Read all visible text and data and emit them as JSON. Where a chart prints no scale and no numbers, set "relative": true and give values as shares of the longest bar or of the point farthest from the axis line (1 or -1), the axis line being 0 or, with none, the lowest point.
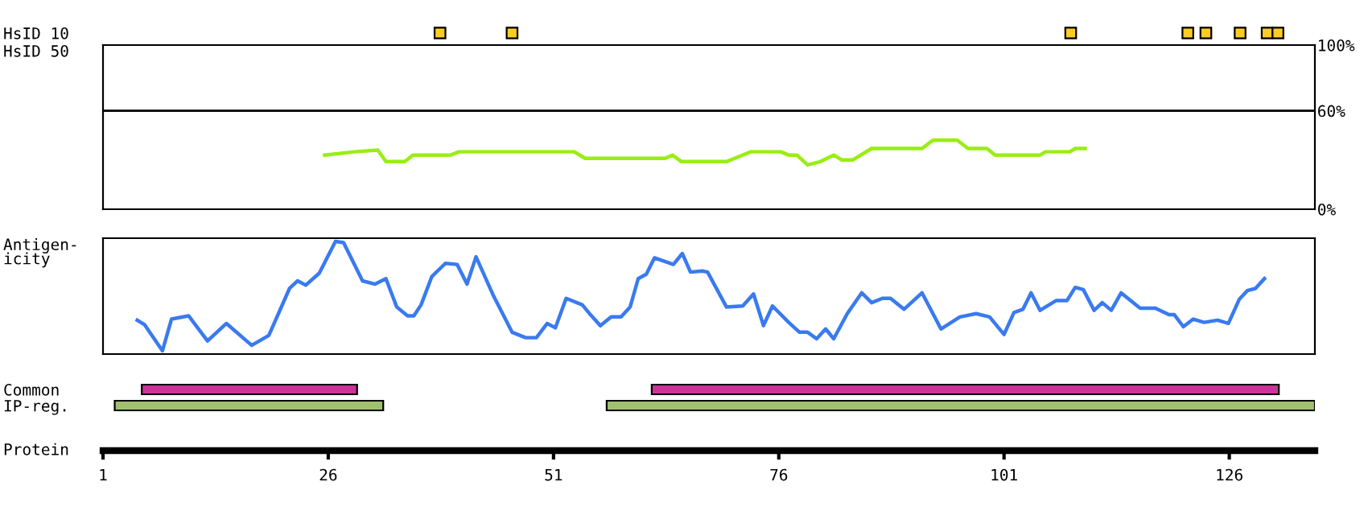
{
  "chart_data": [
    {
      "type": "bar",
      "orientation": "horizontal",
      "categories": [
        "HsID 10",
        "HsID 50"
      ],
      "xlim": [
        1,
        135.5
      ],
      "tick_labels": "y",
      "grid": false,
      "legend": false,
      "series": [
        {
          "color": "#ffcc22",
          "values": [
            1.2,
            null
          ],
          "base": [
            37.8,
            null
          ]
        },
        {
          "color": "#ffcc22",
          "values": [
            1.2,
            null
          ],
          "base": [
            45.8,
            null
          ]
        },
        {
          "color": "#ffcc22",
          "values": [
            1.2,
            null
          ],
          "base": [
            107.8,
            null
          ]
        },
        {
          "color": "#ffcc22",
          "values": [
            1.2,
            null
          ],
          "base": [
            120.8,
            null
          ]
        },
        {
          "color": "#ffcc22",
          "values": [
            1.2,
            null
          ],
          "base": [
            122.8,
            null
          ]
        },
        {
          "color": "#ffcc22",
          "values": [
            1.2,
            null
          ],
          "base": [
            126.6,
            null
          ]
        },
        {
          "color": "#ffcc22",
          "values": [
            1.2,
            null
          ],
          "base": [
            129.6,
            null
          ]
        },
        {
          "color": "#ffcc22",
          "values": [
            1.2,
            null
          ],
          "base": [
            130.8,
            null
          ]
        }
      ]
    },
    {
      "type": "line",
      "xlim": [
        1,
        135.5
      ],
      "ylim": [
        0,
        100
      ],
      "yticks": [
        {
          "value": 0,
          "label": "0%"
        },
        {
          "value": 60,
          "label": "60%"
        },
        {
          "value": 100,
          "label": "100%"
        }
      ],
      "tick_labels": "y",
      "grid": false,
      "legend": false,
      "ref_lines": [
        {
          "axis": "y",
          "value": 60,
          "color": "#000000",
          "line_style": "solid"
        }
      ],
      "series": [
        {
          "color": "#99ee11",
          "x": [
            25.6,
            28.9,
            31.5,
            32.4,
            34.5,
            35.4,
            39.6,
            40.5,
            53.3,
            54.5,
            63.4,
            64.2,
            65.2,
            70.2,
            71.1,
            72.9,
            76.2,
            77.1,
            78.0,
            79.2,
            80.6,
            82.1,
            83.0,
            84.2,
            86.3,
            91.9,
            93.1,
            95.8,
            97.0,
            99.1,
            100.0,
            105.0,
            105.6,
            108.3,
            108.9,
            110.0
          ],
          "values": [
            33,
            35,
            36,
            29,
            29,
            33,
            33,
            35,
            35,
            31,
            31,
            33,
            29,
            29,
            31,
            35,
            35,
            33,
            33,
            27,
            29,
            33,
            30,
            30,
            37,
            37,
            42,
            42,
            37,
            37,
            33,
            33,
            35,
            35,
            37,
            37
          ]
        }
      ]
    },
    {
      "type": "line",
      "relative": true,
      "xlim": [
        1,
        135.5
      ],
      "ylabel": "Antigen-\nicity",
      "tick_labels": false,
      "grid": false,
      "legend": false,
      "series": [
        {
          "color": "#3a7af0",
          "x": [
            4.8,
            5.6,
            7.6,
            8.6,
            10.5,
            12.6,
            14.7,
            17.5,
            19.4,
            21.7,
            22.6,
            23.5,
            25.0,
            26.8,
            27.7,
            29.8,
            31.2,
            32.4,
            33.6,
            34.8,
            35.5,
            36.3,
            37.5,
            39.0,
            40.3,
            41.4,
            42.4,
            44.3,
            46.4,
            47.9,
            49.1,
            50.3,
            51.2,
            52.4,
            54.2,
            55.1,
            56.2,
            57.4,
            58.5,
            59.5,
            60.4,
            61.3,
            62.2,
            64.3,
            65.3,
            66.2,
            67.5,
            68.1,
            70.2,
            72.0,
            73.2,
            74.3,
            75.3,
            77.1,
            78.3,
            79.2,
            80.2,
            81.2,
            82.1,
            83.6,
            85.2,
            86.3,
            87.5,
            88.4,
            89.9,
            91.9,
            94.0,
            96.1,
            97.9,
            99.4,
            101.0,
            102.1,
            103.1,
            104.0,
            105.0,
            106.8,
            108.0,
            108.9,
            109.8,
            111.0,
            111.9,
            112.9,
            114.0,
            116.1,
            117.8,
            119.3,
            119.9,
            120.9,
            122.0,
            123.2,
            124.7,
            125.9,
            127.1,
            128.0,
            128.9,
            129.9
          ],
          "values": [
            0.28,
            0.24,
            0,
            0.29,
            0.32,
            0.09,
            0.25,
            0.05,
            0.14,
            0.57,
            0.64,
            0.6,
            0.71,
            1,
            0.99,
            0.64,
            0.61,
            0.66,
            0.4,
            0.32,
            0.32,
            0.42,
            0.68,
            0.8,
            0.79,
            0.61,
            0.86,
            0.51,
            0.17,
            0.12,
            0.12,
            0.25,
            0.21,
            0.48,
            0.42,
            0.33,
            0.23,
            0.31,
            0.31,
            0.4,
            0.66,
            0.7,
            0.85,
            0.79,
            0.89,
            0.72,
            0.73,
            0.72,
            0.4,
            0.41,
            0.52,
            0.23,
            0.41,
            0.26,
            0.17,
            0.17,
            0.11,
            0.2,
            0.11,
            0.34,
            0.53,
            0.44,
            0.48,
            0.48,
            0.38,
            0.53,
            0.2,
            0.31,
            0.34,
            0.31,
            0.15,
            0.35,
            0.38,
            0.53,
            0.37,
            0.46,
            0.46,
            0.58,
            0.56,
            0.37,
            0.44,
            0.37,
            0.53,
            0.39,
            0.39,
            0.33,
            0.33,
            0.22,
            0.29,
            0.26,
            0.28,
            0.25,
            0.47,
            0.55,
            0.57,
            0.66
          ]
        }
      ]
    },
    {
      "type": "bar",
      "orientation": "horizontal",
      "categories": [
        "Common",
        "IP-reg."
      ],
      "xlim": [
        1,
        135.5
      ],
      "xticks": [
        1,
        26,
        51,
        76,
        101,
        126
      ],
      "xlabel": "Protein",
      "grid": false,
      "legend": false,
      "series": [
        {
          "color": "#cc3399",
          "values": [
            23.9,
            null
          ],
          "base": [
            5.3,
            null
          ]
        },
        {
          "color": "#cc3399",
          "values": [
            69.6,
            null
          ],
          "base": [
            61.9,
            null
          ]
        },
        {
          "color": "#a0c070",
          "values": [
            null,
            29.8
          ],
          "base": [
            null,
            2.3
          ]
        },
        {
          "color": "#a0c070",
          "values": [
            null,
            78.6
          ],
          "base": [
            null,
            56.9
          ]
        }
      ]
    }
  ]
}
